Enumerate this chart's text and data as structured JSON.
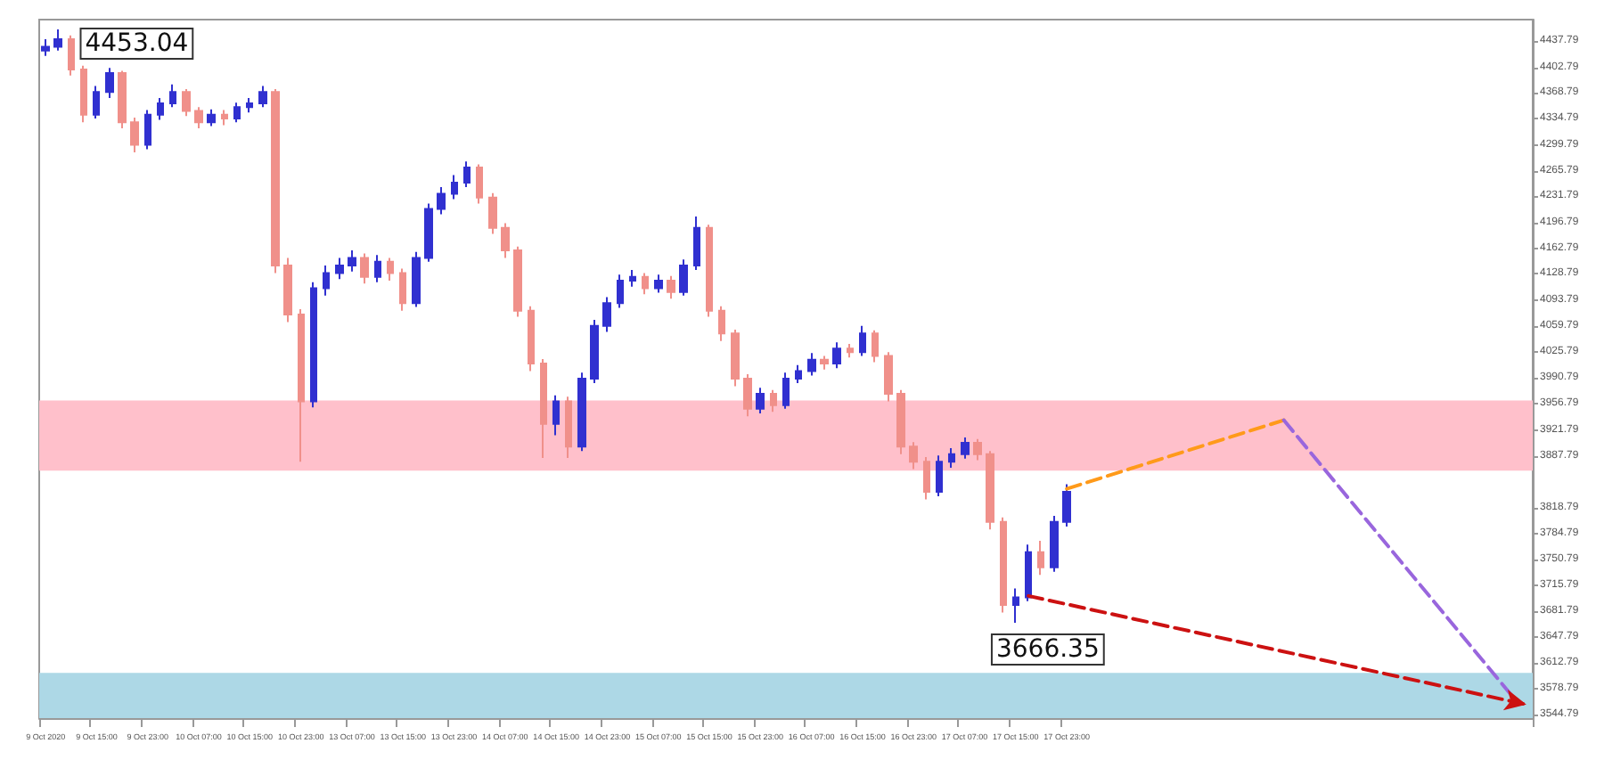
{
  "chart_data": {
    "type": "candlestick",
    "categories": [
      "9 Oct 2020",
      null,
      null,
      null,
      "9 Oct 15:00",
      null,
      null,
      null,
      "9 Oct 23:00",
      null,
      null,
      null,
      "10 Oct 07:00",
      null,
      null,
      null,
      "10 Oct 15:00",
      null,
      null,
      null,
      "10 Oct 23:00",
      null,
      null,
      null,
      "13 Oct 07:00",
      null,
      null,
      null,
      "13 Oct 15:00",
      null,
      null,
      null,
      "13 Oct 23:00",
      null,
      null,
      null,
      "14 Oct 07:00",
      null,
      null,
      null,
      "14 Oct 15:00",
      null,
      null,
      null,
      "14 Oct 23:00",
      null,
      null,
      null,
      "15 Oct 07:00",
      null,
      null,
      null,
      "15 Oct 15:00",
      null,
      null,
      null,
      "15 Oct 23:00",
      null,
      null,
      null,
      "16 Oct 07:00",
      null,
      null,
      null,
      "16 Oct 15:00",
      null,
      null,
      null,
      "16 Oct 23:00",
      null,
      null,
      null,
      "17 Oct 07:00",
      null,
      null,
      null,
      "17 Oct 15:00",
      null,
      null,
      null,
      "17 Oct 23:00",
      null,
      null,
      null,
      null,
      null,
      null,
      null,
      null,
      null,
      null,
      null,
      null,
      null,
      null,
      null,
      null,
      null,
      null,
      null,
      null,
      null,
      null,
      null,
      null,
      null,
      null,
      null,
      null,
      null,
      null,
      null,
      null,
      null,
      null,
      null,
      null
    ],
    "series": [
      {
        "ohlc": [
          [
            4425,
            4440,
            4418,
            4430
          ],
          [
            4430,
            4453.04,
            4425,
            4440
          ],
          [
            4440,
            4445,
            4392,
            4400
          ],
          [
            4400,
            4405,
            4330,
            4340
          ],
          [
            4340,
            4378,
            4335,
            4370
          ],
          [
            4370,
            4402,
            4362,
            4395
          ],
          [
            4395,
            4398,
            4322,
            4330
          ],
          [
            4330,
            4336,
            4290,
            4300
          ],
          [
            4300,
            4346,
            4294,
            4340
          ],
          [
            4340,
            4362,
            4333,
            4355
          ],
          [
            4355,
            4380,
            4350,
            4370
          ],
          [
            4370,
            4374,
            4338,
            4345
          ],
          [
            4345,
            4350,
            4322,
            4330
          ],
          [
            4330,
            4347,
            4325,
            4340
          ],
          [
            4340,
            4346,
            4326,
            4335
          ],
          [
            4335,
            4356,
            4330,
            4350
          ],
          [
            4350,
            4362,
            4343,
            4355
          ],
          [
            4355,
            4378,
            4350,
            4370
          ],
          [
            4370,
            4374,
            4130,
            4140
          ],
          [
            4140,
            4150,
            4065,
            4075
          ],
          [
            4075,
            4082,
            3880,
            3960
          ],
          [
            3960,
            4118,
            3952,
            4110
          ],
          [
            4110,
            4140,
            4100,
            4130
          ],
          [
            4130,
            4150,
            4122,
            4140
          ],
          [
            4140,
            4160,
            4132,
            4150
          ],
          [
            4150,
            4156,
            4116,
            4125
          ],
          [
            4125,
            4154,
            4118,
            4145
          ],
          [
            4145,
            4150,
            4120,
            4130
          ],
          [
            4130,
            4136,
            4080,
            4090
          ],
          [
            4090,
            4158,
            4085,
            4150
          ],
          [
            4150,
            4222,
            4145,
            4215
          ],
          [
            4215,
            4244,
            4208,
            4235
          ],
          [
            4235,
            4260,
            4228,
            4250
          ],
          [
            4250,
            4278,
            4244,
            4270
          ],
          [
            4270,
            4274,
            4222,
            4230
          ],
          [
            4230,
            4236,
            4182,
            4190
          ],
          [
            4190,
            4196,
            4150,
            4160
          ],
          [
            4160,
            4165,
            4072,
            4080
          ],
          [
            4080,
            4086,
            4000,
            4010
          ],
          [
            4010,
            4016,
            3885,
            3930
          ],
          [
            3930,
            3968,
            3915,
            3960
          ],
          [
            3960,
            3966,
            3885,
            3900
          ],
          [
            3900,
            3998,
            3894,
            3990
          ],
          [
            3990,
            4068,
            3984,
            4060
          ],
          [
            4060,
            4098,
            4052,
            4090
          ],
          [
            4090,
            4128,
            4084,
            4120
          ],
          [
            4120,
            4134,
            4112,
            4125
          ],
          [
            4125,
            4130,
            4102,
            4110
          ],
          [
            4110,
            4128,
            4104,
            4120
          ],
          [
            4120,
            4126,
            4096,
            4105
          ],
          [
            4105,
            4148,
            4100,
            4140
          ],
          [
            4140,
            4205,
            4134,
            4190
          ],
          [
            4190,
            4194,
            4072,
            4080
          ],
          [
            4080,
            4086,
            4040,
            4050
          ],
          [
            4050,
            4055,
            3980,
            3990
          ],
          [
            3990,
            3996,
            3940,
            3950
          ],
          [
            3950,
            3978,
            3944,
            3970
          ],
          [
            3970,
            3975,
            3946,
            3955
          ],
          [
            3955,
            3998,
            3950,
            3990
          ],
          [
            3990,
            4008,
            3984,
            4000
          ],
          [
            4000,
            4024,
            3994,
            4015
          ],
          [
            4015,
            4020,
            4002,
            4010
          ],
          [
            4010,
            4038,
            4004,
            4030
          ],
          [
            4030,
            4036,
            4018,
            4025
          ],
          [
            4025,
            4060,
            4020,
            4050
          ],
          [
            4050,
            4054,
            4012,
            4020
          ],
          [
            4020,
            4025,
            3960,
            3970
          ],
          [
            3970,
            3975,
            3890,
            3900
          ],
          [
            3900,
            3906,
            3870,
            3880
          ],
          [
            3880,
            3886,
            3830,
            3840
          ],
          [
            3840,
            3888,
            3834,
            3880
          ],
          [
            3880,
            3898,
            3872,
            3890
          ],
          [
            3890,
            3912,
            3884,
            3905
          ],
          [
            3905,
            3910,
            3882,
            3890
          ],
          [
            3890,
            3894,
            3790,
            3800
          ],
          [
            3800,
            3806,
            3680,
            3690
          ],
          [
            3690,
            3712,
            3666.35,
            3700
          ],
          [
            3700,
            3770,
            3695,
            3760
          ],
          [
            3760,
            3775,
            3730,
            3740
          ],
          [
            3740,
            3808,
            3734,
            3800
          ],
          [
            3800,
            3850,
            3794,
            3840
          ],
          null,
          null,
          null,
          null,
          null,
          null,
          null,
          null,
          null,
          null,
          null,
          null,
          null,
          null,
          null,
          null,
          null,
          null,
          null,
          null,
          null,
          null,
          null,
          null,
          null,
          null,
          null,
          null,
          null,
          null,
          null,
          null,
          null,
          null,
          null,
          null
        ],
        "colors": [
          "#3030d0",
          "#3030d0",
          "#f0908a",
          "#f0908a",
          "#3030d0",
          "#3030d0",
          "#f0908a",
          "#f0908a",
          "#3030d0",
          "#3030d0",
          "#3030d0",
          "#f0908a",
          "#f0908a",
          "#3030d0",
          "#f0908a",
          "#3030d0",
          "#3030d0",
          "#3030d0",
          "#f0908a",
          "#f0908a",
          "#f0908a",
          "#3030d0",
          "#3030d0",
          "#3030d0",
          "#3030d0",
          "#f0908a",
          "#3030d0",
          "#f0908a",
          "#f0908a",
          "#3030d0",
          "#3030d0",
          "#3030d0",
          "#3030d0",
          "#3030d0",
          "#f0908a",
          "#f0908a",
          "#f0908a",
          "#f0908a",
          "#f0908a",
          "#f0908a",
          "#3030d0",
          "#f0908a",
          "#3030d0",
          "#3030d0",
          "#3030d0",
          "#3030d0",
          "#3030d0",
          "#f0908a",
          "#3030d0",
          "#f0908a",
          "#3030d0",
          "#3030d0",
          "#f0908a",
          "#f0908a",
          "#f0908a",
          "#f0908a",
          "#3030d0",
          "#f0908a",
          "#3030d0",
          "#3030d0",
          "#3030d0",
          "#f0908a",
          "#3030d0",
          "#f0908a",
          "#3030d0",
          "#f0908a",
          "#f0908a",
          "#f0908a",
          "#f0908a",
          "#f0908a",
          "#3030d0",
          "#3030d0",
          "#3030d0",
          "#f0908a",
          "#f0908a",
          "#f0908a",
          "#3030d0",
          "#3030d0",
          "#f0908a",
          "#3030d0",
          "#3030d0",
          null,
          null,
          null,
          null,
          null,
          null,
          null,
          null,
          null,
          null,
          null,
          null,
          null,
          null,
          null,
          null,
          null,
          null,
          null,
          null,
          null,
          null,
          null,
          null,
          null,
          null,
          null,
          null,
          null,
          null,
          null,
          null,
          null,
          null,
          null,
          null
        ]
      },
      {
        "type": "line",
        "color": "#ff9a1a",
        "line_style": "dashed",
        "values": [
          null,
          null,
          null,
          null,
          null,
          null,
          null,
          null,
          null,
          null,
          null,
          null,
          null,
          null,
          null,
          null,
          null,
          null,
          null,
          null,
          null,
          null,
          null,
          null,
          null,
          null,
          null,
          null,
          null,
          null,
          null,
          null,
          null,
          null,
          null,
          null,
          null,
          null,
          null,
          null,
          null,
          null,
          null,
          null,
          null,
          null,
          null,
          null,
          null,
          null,
          null,
          null,
          null,
          null,
          null,
          null,
          null,
          null,
          null,
          null,
          null,
          null,
          null,
          null,
          null,
          null,
          null,
          null,
          null,
          null,
          null,
          null,
          null,
          null,
          null,
          null,
          null,
          null,
          null,
          null,
          3844,
          null,
          null,
          null,
          null,
          null,
          null,
          null,
          null,
          null,
          null,
          null,
          null,
          null,
          null,
          null,
          null,
          3935,
          null,
          null,
          null,
          null,
          null,
          null,
          null,
          null,
          null,
          null,
          null,
          null,
          null,
          null,
          null,
          null,
          null,
          null,
          null
        ]
      },
      {
        "type": "line",
        "color": "#9966dd",
        "line_style": "dashed",
        "values": [
          null,
          null,
          null,
          null,
          null,
          null,
          null,
          null,
          null,
          null,
          null,
          null,
          null,
          null,
          null,
          null,
          null,
          null,
          null,
          null,
          null,
          null,
          null,
          null,
          null,
          null,
          null,
          null,
          null,
          null,
          null,
          null,
          null,
          null,
          null,
          null,
          null,
          null,
          null,
          null,
          null,
          null,
          null,
          null,
          null,
          null,
          null,
          null,
          null,
          null,
          null,
          null,
          null,
          null,
          null,
          null,
          null,
          null,
          null,
          null,
          null,
          null,
          null,
          null,
          null,
          null,
          null,
          null,
          null,
          null,
          null,
          null,
          null,
          null,
          null,
          null,
          null,
          null,
          null,
          null,
          null,
          null,
          null,
          null,
          null,
          null,
          null,
          null,
          null,
          null,
          null,
          null,
          null,
          null,
          null,
          null,
          null,
          3935,
          null,
          null,
          null,
          null,
          null,
          null,
          null,
          null,
          null,
          null,
          null,
          null,
          null,
          null,
          null,
          null,
          null,
          3567,
          null
        ]
      },
      {
        "type": "line",
        "color": "#cc1111",
        "line_style": "dashed",
        "values": [
          null,
          null,
          null,
          null,
          null,
          null,
          null,
          null,
          null,
          null,
          null,
          null,
          null,
          null,
          null,
          null,
          null,
          null,
          null,
          null,
          null,
          null,
          null,
          null,
          null,
          null,
          null,
          null,
          null,
          null,
          null,
          null,
          null,
          null,
          null,
          null,
          null,
          null,
          null,
          null,
          null,
          null,
          null,
          null,
          null,
          null,
          null,
          null,
          null,
          null,
          null,
          null,
          null,
          null,
          null,
          null,
          null,
          null,
          null,
          null,
          null,
          null,
          null,
          null,
          null,
          null,
          null,
          null,
          null,
          null,
          null,
          null,
          null,
          null,
          null,
          null,
          null,
          3702,
          null,
          null,
          null,
          null,
          null,
          null,
          null,
          null,
          null,
          null,
          null,
          null,
          null,
          null,
          null,
          null,
          null,
          null,
          null,
          null,
          null,
          null,
          null,
          null,
          null,
          null,
          null,
          null,
          null,
          null,
          null,
          null,
          null,
          null,
          null,
          null,
          null,
          null,
          3558
        ]
      }
    ],
    "ylim": [
      3540,
      4466
    ],
    "yticks": [
      3544.79,
      3578.79,
      3612.79,
      3647.79,
      3681.79,
      3715.79,
      3750.79,
      3784.79,
      3818.79,
      3887.79,
      3921.79,
      3956.79,
      3990.79,
      4025.79,
      4059.79,
      4093.79,
      4128.79,
      4162.79,
      4196.79,
      4231.79,
      4265.79,
      4299.79,
      4334.79,
      4368.79,
      4402.79,
      4437.79
    ],
    "bands": [
      {
        "axis": "y",
        "from": 3868,
        "to": 3961,
        "color": "#ffc0cb"
      },
      {
        "axis": "y",
        "from": 3540,
        "to": 3600,
        "color": "#add8e6"
      }
    ],
    "annotations": [
      "4453.04",
      "3666.35"
    ],
    "grid": false
  }
}
